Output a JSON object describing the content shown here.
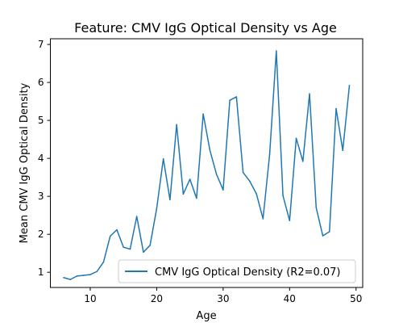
{
  "chart_data": {
    "type": "line",
    "title": "Feature: CMV IgG Optical Density vs Age",
    "xlabel": "Age",
    "ylabel": "Mean CMV IgG Optical Density",
    "xlim": [
      4,
      51
    ],
    "ylim": [
      0.6,
      7.15
    ],
    "xticks": [
      10,
      20,
      30,
      40,
      50
    ],
    "yticks": [
      1,
      2,
      3,
      4,
      5,
      6,
      7
    ],
    "grid": false,
    "legend_position": "bottom-right",
    "series": [
      {
        "name": "CMV IgG Optical Density (R2=0.07)",
        "color": "#1f77b4",
        "x": [
          6,
          7,
          8,
          9,
          10,
          11,
          12,
          13,
          14,
          15,
          16,
          17,
          18,
          19,
          20,
          21,
          22,
          23,
          24,
          25,
          26,
          27,
          28,
          29,
          30,
          31,
          32,
          33,
          34,
          35,
          36,
          37,
          38,
          39,
          40,
          41,
          42,
          43,
          44,
          45,
          46,
          47,
          48,
          49
        ],
        "y": [
          0.86,
          0.81,
          0.9,
          0.92,
          0.94,
          1.02,
          1.27,
          1.95,
          2.12,
          1.66,
          1.61,
          2.47,
          1.53,
          1.71,
          2.68,
          3.99,
          2.91,
          4.89,
          3.06,
          3.45,
          2.95,
          5.17,
          4.22,
          3.58,
          3.17,
          5.53,
          5.62,
          3.63,
          3.4,
          3.07,
          2.41,
          4.11,
          6.83,
          3.02,
          2.36,
          4.53,
          3.92,
          5.7,
          2.7,
          1.96,
          2.07,
          5.31,
          4.21,
          5.92
        ]
      }
    ]
  }
}
